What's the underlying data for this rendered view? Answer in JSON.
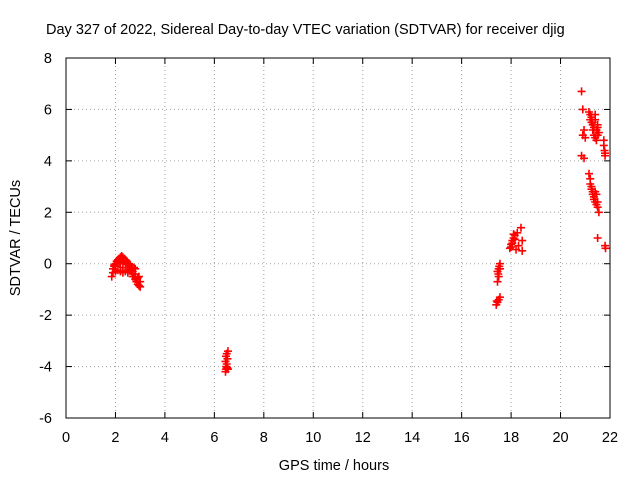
{
  "chart_data": {
    "type": "scatter",
    "title": "Day 327 of 2022, Sidereal Day-to-day VTEC variation (SDTVAR) for receiver djig",
    "xlabel": "GPS time / hours",
    "ylabel": "SDTVAR / TECUs",
    "xlim": [
      0,
      22
    ],
    "ylim": [
      -6,
      8
    ],
    "xticks": [
      "0",
      "2",
      "4",
      "6",
      "8",
      "10",
      "12",
      "14",
      "16",
      "18",
      "20",
      "22"
    ],
    "yticks": [
      "-6",
      "-4",
      "-2",
      "0",
      "2",
      "4",
      "6",
      "8"
    ],
    "grid": true,
    "marker": "+",
    "color": "#ff0000",
    "series": [
      {
        "name": "SDTVAR",
        "x": [
          1.85,
          1.9,
          1.95,
          2.0,
          2.05,
          2.1,
          2.15,
          2.2,
          2.25,
          2.3,
          2.35,
          2.4,
          2.45,
          2.5,
          2.55,
          2.6,
          2.65,
          2.7,
          2.75,
          2.8,
          2.85,
          2.9,
          2.95,
          3.0,
          1.9,
          2.0,
          2.1,
          2.2,
          2.3,
          2.4,
          2.5,
          2.6,
          2.7,
          2.8,
          2.9,
          3.0,
          2.0,
          2.2,
          2.4,
          2.6,
          2.8,
          2.3,
          2.5,
          2.7,
          1.95,
          2.15,
          2.35,
          2.55,
          2.75,
          2.95,
          6.45,
          6.45,
          6.47,
          6.47,
          6.48,
          6.5,
          6.5,
          6.52,
          6.53,
          6.55,
          6.55,
          17.4,
          17.42,
          17.45,
          17.45,
          17.48,
          17.5,
          17.5,
          17.52,
          17.55,
          17.55,
          17.45,
          17.5,
          17.55,
          17.95,
          18.0,
          18.05,
          18.1,
          18.15,
          18.2,
          18.25,
          18.3,
          18.0,
          18.05,
          18.1,
          18.15,
          18.4,
          18.45,
          18.45,
          20.85,
          20.85,
          20.9,
          20.9,
          20.95,
          20.95,
          21.0,
          21.15,
          21.2,
          21.2,
          21.25,
          21.25,
          21.3,
          21.3,
          21.35,
          21.35,
          21.4,
          21.4,
          21.45,
          21.45,
          21.5,
          21.5,
          21.55,
          21.3,
          21.4,
          21.5,
          21.15,
          21.2,
          21.2,
          21.25,
          21.25,
          21.3,
          21.3,
          21.35,
          21.35,
          21.4,
          21.4,
          21.45,
          21.45,
          21.5,
          21.5,
          21.55,
          21.75,
          21.78,
          21.8,
          21.8,
          21.82,
          21.5,
          21.75,
          21.8
        ],
        "y": [
          -0.5,
          -0.2,
          -0.1,
          0.0,
          0.1,
          0.15,
          0.2,
          0.25,
          0.3,
          0.25,
          0.2,
          0.15,
          0.1,
          0.0,
          -0.1,
          -0.2,
          -0.3,
          -0.4,
          -0.5,
          -0.6,
          -0.7,
          -0.8,
          -0.85,
          -0.9,
          -0.35,
          -0.3,
          -0.25,
          -0.3,
          -0.35,
          -0.3,
          -0.25,
          -0.2,
          -0.3,
          -0.4,
          -0.55,
          -0.7,
          -0.1,
          0.0,
          0.05,
          -0.05,
          -0.2,
          -0.15,
          -0.35,
          -0.5,
          -0.05,
          0.05,
          0.1,
          0.0,
          -0.15,
          -0.5,
          -4.2,
          -3.8,
          -4.1,
          -3.6,
          -4.0,
          -3.9,
          -3.5,
          -4.05,
          -3.7,
          -3.4,
          -4.1,
          -1.6,
          -1.45,
          -0.7,
          -1.5,
          -0.4,
          -0.2,
          -1.4,
          -0.1,
          -1.3,
          0.0,
          -0.3,
          -0.5,
          -0.2,
          0.6,
          0.75,
          0.9,
          1.0,
          1.1,
          0.55,
          1.2,
          0.7,
          0.65,
          0.8,
          1.15,
          0.95,
          1.4,
          0.9,
          0.5,
          4.2,
          6.7,
          5.0,
          6.0,
          5.2,
          4.1,
          4.9,
          5.9,
          5.8,
          5.6,
          5.5,
          5.7,
          5.4,
          5.2,
          5.3,
          5.0,
          5.6,
          4.9,
          5.2,
          4.8,
          5.4,
          5.0,
          5.1,
          5.5,
          5.8,
          5.3,
          3.5,
          3.3,
          3.1,
          3.0,
          2.9,
          2.8,
          2.7,
          2.6,
          2.5,
          2.4,
          2.8,
          2.3,
          2.7,
          2.2,
          2.4,
          2.0,
          4.8,
          4.4,
          4.2,
          0.7,
          0.6,
          1.0,
          4.6,
          4.3
        ]
      }
    ]
  }
}
